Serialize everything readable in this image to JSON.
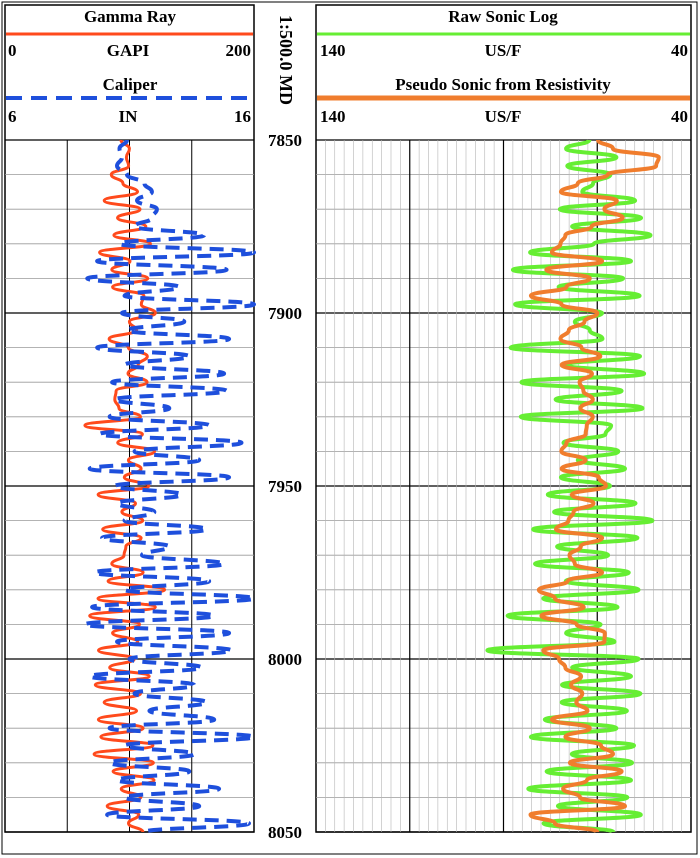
{
  "chart_data": {
    "type": "line",
    "depth_axis": {
      "label": "1:500.0 MD",
      "range": [
        7850,
        8050
      ],
      "ticks": [
        "7850",
        "7900",
        "7950",
        "8000",
        "8050"
      ]
    },
    "tracks": [
      {
        "curves": [
          {
            "name": "Gamma Ray",
            "unit": "GAPI",
            "min_label": "0",
            "max_label": "200",
            "range": [
              0,
              200
            ],
            "color": "#ff4a1c",
            "style": "solid",
            "x": [
              93.2,
              99.9,
              97.5,
              99.3,
              85.4,
              94.7,
              106.4,
              79.7,
              108.4,
              90.4,
              113.1,
              87.5,
              116.9,
              76.0,
              100.4,
              85.8,
              114.7,
              86.4,
              111.6,
              109.5,
              120.8,
              99.9,
              105.6,
              83.6,
              99.1,
              114.3,
              107.0,
              98.8,
              114.1,
              89.2,
              88.2,
              91.6,
              108.8,
              64.2,
              110.4,
              90.5,
              120.2,
              99.1,
              109.3,
              95.8,
              115.5,
              74.8,
              104.8,
              93.9,
              110.6,
              78.5,
              109.3,
              97.1,
              95.6,
              85.8,
              110.9,
              82.8,
              128.2,
              74.7,
              120.7,
              68.0,
              108.0,
              86.4,
              106.6,
              75.1,
              103.9,
              84.1,
              115.8,
              72.5,
              108.8,
              79.6,
              105.7,
              75.0,
              110.9,
              77.0,
              118.8,
              71.6,
              119.2,
              86.8,
              119.7,
              93.3,
              109.1,
              82.1,
              107.4,
              99.2,
              110.8
            ],
            "depth": [
              7850.0,
              7852.5,
              7855.0,
              7857.5,
              7860.0,
              7862.5,
              7865.0,
              7867.5,
              7870.0,
              7872.5,
              7875.0,
              7877.5,
              7880.0,
              7882.5,
              7885.0,
              7887.5,
              7890.0,
              7892.5,
              7895.0,
              7897.5,
              7900.0,
              7902.5,
              7905.0,
              7907.5,
              7910.0,
              7912.5,
              7915.0,
              7917.5,
              7920.0,
              7922.5,
              7925.0,
              7927.5,
              7930.0,
              7932.5,
              7935.0,
              7937.5,
              7940.0,
              7942.5,
              7945.0,
              7947.5,
              7950.0,
              7952.5,
              7955.0,
              7957.5,
              7960.0,
              7962.5,
              7965.0,
              7967.5,
              7970.0,
              7972.5,
              7975.0,
              7977.5,
              7980.0,
              7982.5,
              7985.0,
              7987.5,
              7990.0,
              7992.5,
              7995.0,
              7997.5,
              8000.0,
              8002.5,
              8005.0,
              8007.5,
              8010.0,
              8012.5,
              8015.0,
              8017.5,
              8020.0,
              8022.5,
              8025.0,
              8027.5,
              8030.0,
              8032.5,
              8035.0,
              8037.5,
              8040.0,
              8042.5,
              8045.0,
              8047.5,
              8050.0
            ]
          },
          {
            "name": "Caliper",
            "unit": "IN",
            "min_label": "6",
            "max_label": "16",
            "range": [
              6,
              16
            ],
            "color": "#1e4fdc",
            "style": "dashed",
            "x": [
              10.9,
              10.6,
              10.7,
              10.5,
              10.9,
              11.6,
              11.9,
              11.3,
              12.1,
              11.9,
              11.2,
              14.0,
              10.6,
              16.0,
              9.7,
              14.9,
              9.3,
              13.0,
              10.8,
              16.0,
              10.7,
              13.2,
              10.9,
              15.0,
              9.7,
              13.4,
              10.8,
              14.8,
              10.3,
              14.9,
              10.4,
              12.6,
              10.2,
              14.2,
              9.8,
              15.5,
              11.2,
              13.8,
              9.4,
              15.0,
              10.4,
              13.1,
              10.5,
              12.0,
              10.8,
              14.1,
              9.9,
              12.6,
              11.5,
              14.8,
              9.6,
              14.2,
              10.8,
              16.0,
              9.5,
              14.4,
              9.2,
              15.0,
              10.5,
              15.1,
              11.0,
              13.9,
              9.4,
              13.6,
              11.2,
              14.1,
              11.8,
              14.4,
              10.2,
              16.0,
              10.8,
              13.6,
              10.2,
              13.4,
              10.5,
              14.6,
              10.8,
              13.8,
              10.1,
              15.8,
              11.6
            ],
            "depth": [
              7850.0,
              7852.5,
              7855.0,
              7857.5,
              7860.0,
              7862.5,
              7865.0,
              7867.5,
              7870.0,
              7872.5,
              7875.0,
              7877.5,
              7880.0,
              7882.5,
              7885.0,
              7887.5,
              7890.0,
              7892.5,
              7895.0,
              7897.5,
              7900.0,
              7902.5,
              7905.0,
              7907.5,
              7910.0,
              7912.5,
              7915.0,
              7917.5,
              7920.0,
              7922.5,
              7925.0,
              7927.5,
              7930.0,
              7932.5,
              7935.0,
              7937.5,
              7940.0,
              7942.5,
              7945.0,
              7947.5,
              7950.0,
              7952.5,
              7955.0,
              7957.5,
              7960.0,
              7962.5,
              7965.0,
              7967.5,
              7970.0,
              7972.5,
              7975.0,
              7977.5,
              7980.0,
              7982.5,
              7985.0,
              7987.5,
              7990.0,
              7992.5,
              7995.0,
              7997.5,
              8000.0,
              8002.5,
              8005.0,
              8007.5,
              8010.0,
              8012.5,
              8015.0,
              8017.5,
              8020.0,
              8022.5,
              8025.0,
              8027.5,
              8030.0,
              8032.5,
              8035.0,
              8037.5,
              8040.0,
              8042.5,
              8045.0,
              8047.5,
              8050.0
            ]
          }
        ]
      },
      {
        "curves": [
          {
            "name": "Raw Sonic Log",
            "unit": "US/F",
            "min_label": "140",
            "max_label": "40",
            "range": [
              140,
              40
            ],
            "color": "#66ee33",
            "style": "solid",
            "x": [
              67.1,
              73.3,
              59.9,
              73.0,
              61.5,
              66.1,
              69.0,
              54.9,
              75.0,
              53.3,
              71.7,
              50.8,
              65.9,
              82.9,
              56.0,
              87.5,
              58.1,
              75.3,
              53.7,
              86.9,
              63.7,
              71.0,
              67.0,
              63.6,
              88.1,
              53.6,
              73.8,
              52.5,
              85.2,
              58.5,
              76.1,
              52.9,
              85.4,
              61.3,
              62.8,
              74.0,
              59.4,
              70.2,
              57.6,
              74.7,
              61.6,
              78.2,
              54.8,
              76.5,
              50.3,
              82.1,
              54.3,
              75.7,
              62.1,
              81.6,
              56.6,
              73.4,
              54.0,
              79.4,
              59.6,
              88.9,
              64.1,
              73.3,
              60.4,
              94.3,
              54.0,
              71.7,
              56.0,
              74.4,
              53.5,
              74.5,
              57.1,
              79.0,
              59.9,
              82.7,
              55.2,
              71.8,
              55.7,
              78.5,
              56.0,
              83.4,
              57.0,
              75.5,
              53.4,
              79.3,
              60.7
            ],
            "depth": [
              7850.0,
              7852.5,
              7855.0,
              7857.5,
              7860.0,
              7862.5,
              7865.0,
              7867.5,
              7870.0,
              7872.5,
              7875.0,
              7877.5,
              7880.0,
              7882.5,
              7885.0,
              7887.5,
              7890.0,
              7892.5,
              7895.0,
              7897.5,
              7900.0,
              7902.5,
              7905.0,
              7907.5,
              7910.0,
              7912.5,
              7915.0,
              7917.5,
              7920.0,
              7922.5,
              7925.0,
              7927.5,
              7930.0,
              7932.5,
              7935.0,
              7937.5,
              7940.0,
              7942.5,
              7945.0,
              7947.5,
              7950.0,
              7952.5,
              7955.0,
              7957.5,
              7960.0,
              7962.5,
              7965.0,
              7967.5,
              7970.0,
              7972.5,
              7975.0,
              7977.5,
              7980.0,
              7982.5,
              7985.0,
              7987.5,
              7990.0,
              7992.5,
              7995.0,
              7997.5,
              8000.0,
              8002.5,
              8005.0,
              8007.5,
              8010.0,
              8012.5,
              8015.0,
              8017.5,
              8020.0,
              8022.5,
              8025.0,
              8027.5,
              8030.0,
              8032.5,
              8035.0,
              8037.5,
              8040.0,
              8042.5,
              8045.0,
              8047.5,
              8050.0
            ]
          },
          {
            "name": "Pseudo Sonic from Resistivity",
            "unit": "US/F",
            "min_label": "140",
            "max_label": "40",
            "range": [
              140,
              40
            ],
            "color": "#f07d2d",
            "style": "solid",
            "x": [
              64.8,
              60.8,
              48.6,
              49.3,
              62.2,
              70.2,
              74.7,
              59.8,
              63.1,
              58.2,
              66.5,
              73.5,
              74.8,
              77.1,
              63.7,
              78.6,
              67.0,
              73.2,
              82.7,
              74.5,
              65.0,
              68.4,
              72.6,
              74.8,
              69.2,
              64.2,
              74.5,
              66.4,
              69.7,
              68.7,
              66.2,
              69.5,
              66.2,
              67.8,
              68.1,
              73.2,
              74.6,
              68.1,
              74.5,
              64.6,
              62.7,
              71.8,
              66.0,
              71.3,
              72.7,
              76.0,
              63.7,
              69.4,
              72.4,
              71.0,
              63.7,
              72.9,
              80.6,
              76.3,
              68.6,
              79.9,
              70.5,
              63.0,
              63.1,
              79.4,
              75.2,
              73.5,
              69.3,
              72.0,
              69.0,
              70.6,
              67.6,
              77.1,
              67.0,
              73.5,
              64.0,
              60.8,
              72.3,
              58.5,
              67.8,
              74.1,
              69.6,
              57.6,
              82.8,
              76.3,
              65.0
            ],
            "depth": [
              7850.0,
              7852.5,
              7855.0,
              7857.5,
              7860.0,
              7862.5,
              7865.0,
              7867.5,
              7870.0,
              7872.5,
              7875.0,
              7877.5,
              7880.0,
              7882.5,
              7885.0,
              7887.5,
              7890.0,
              7892.5,
              7895.0,
              7897.5,
              7900.0,
              7902.5,
              7905.0,
              7907.5,
              7910.0,
              7912.5,
              7915.0,
              7917.5,
              7920.0,
              7922.5,
              7925.0,
              7927.5,
              7930.0,
              7932.5,
              7935.0,
              7937.5,
              7940.0,
              7942.5,
              7945.0,
              7947.5,
              7950.0,
              7952.5,
              7955.0,
              7957.5,
              7960.0,
              7962.5,
              7965.0,
              7967.5,
              7970.0,
              7972.5,
              7975.0,
              7977.5,
              7980.0,
              7982.5,
              7985.0,
              7987.5,
              7990.0,
              7992.5,
              7995.0,
              7997.5,
              8000.0,
              8002.5,
              8005.0,
              8007.5,
              8010.0,
              8012.5,
              8015.0,
              8017.5,
              8020.0,
              8022.5,
              8025.0,
              8027.5,
              8030.0,
              8032.5,
              8035.0,
              8037.5,
              8040.0,
              8042.5,
              8045.0,
              8047.5,
              8050.0
            ]
          }
        ]
      }
    ],
    "grid": true
  }
}
